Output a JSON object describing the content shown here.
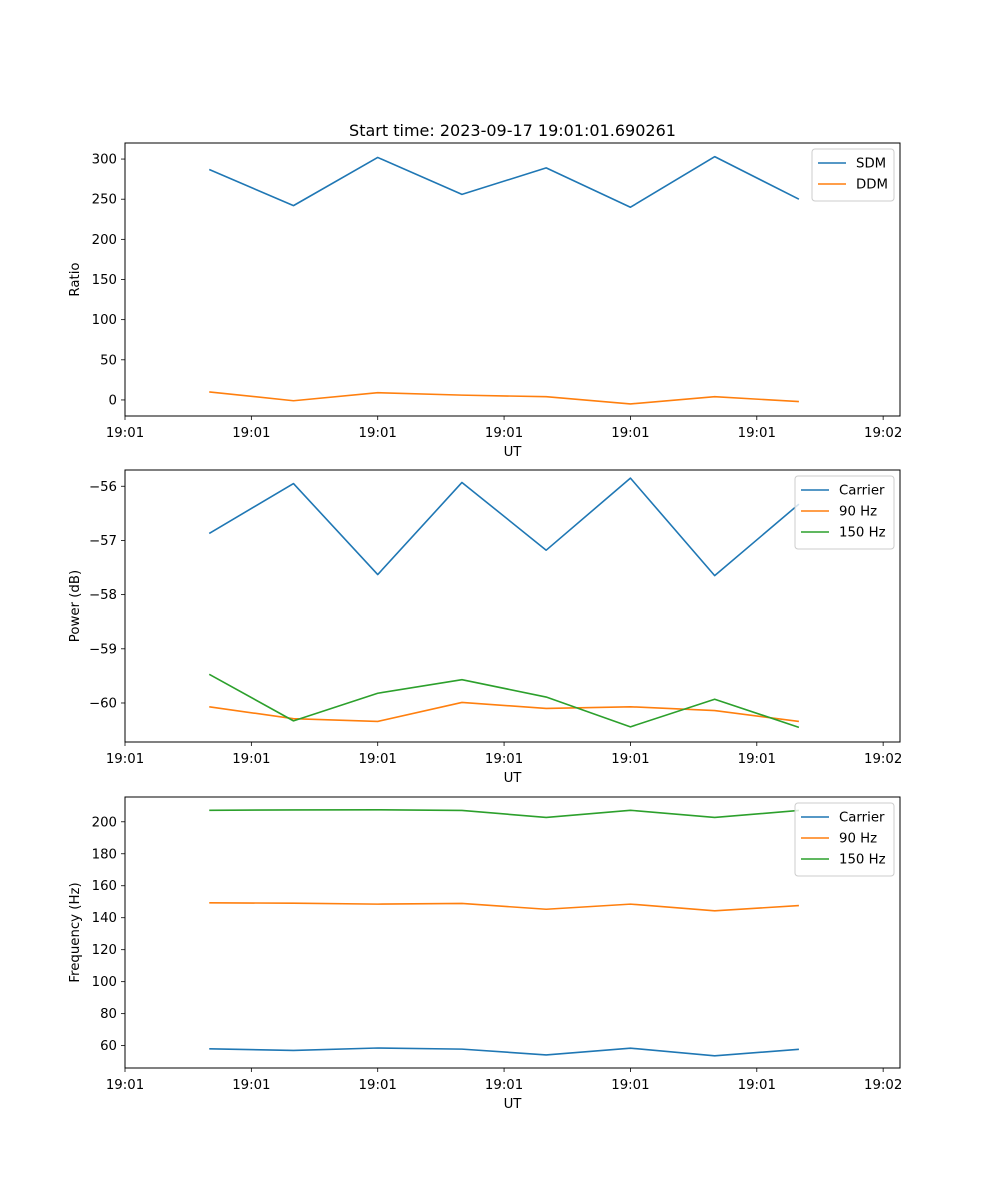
{
  "figure_title": "Start time: 2023-09-17 19:01:01.690261",
  "chart_data": [
    {
      "type": "line",
      "title": "Start time: 2023-09-17 19:01:01.690261",
      "xlabel": "UT",
      "ylabel": "Ratio",
      "x": [
        1,
        2,
        3,
        4,
        5,
        6,
        7,
        8
      ],
      "xlim": [
        0,
        9.2
      ],
      "xticks": [
        0.0,
        1.5,
        3.0,
        4.5,
        6.0,
        7.5,
        9.0
      ],
      "xtick_labels": [
        "19:01",
        "19:01",
        "19:01",
        "19:01",
        "19:01",
        "19:01",
        "19:02"
      ],
      "ylim": [
        -20,
        320
      ],
      "yticks": [
        0,
        50,
        100,
        150,
        200,
        250,
        300
      ],
      "legend_position": "top-right",
      "series": [
        {
          "name": "SDM",
          "color": "#1f77b4",
          "values": [
            287,
            242,
            302,
            256,
            289,
            240,
            303,
            250
          ]
        },
        {
          "name": "DDM",
          "color": "#ff7f0e",
          "values": [
            10,
            -1,
            9,
            6,
            4,
            -5,
            4,
            -2
          ]
        }
      ]
    },
    {
      "type": "line",
      "title": "",
      "xlabel": "UT",
      "ylabel": "Power (dB)",
      "x": [
        1,
        2,
        3,
        4,
        5,
        6,
        7,
        8
      ],
      "xlim": [
        0,
        9.2
      ],
      "xticks": [
        0.0,
        1.5,
        3.0,
        4.5,
        6.0,
        7.5,
        9.0
      ],
      "xtick_labels": [
        "19:01",
        "19:01",
        "19:01",
        "19:01",
        "19:01",
        "19:01",
        "19:02"
      ],
      "ylim": [
        -60.72,
        -55.7
      ],
      "yticks": [
        -60,
        -59,
        -58,
        -57,
        -56
      ],
      "legend_position": "top-right",
      "series": [
        {
          "name": "Carrier",
          "color": "#1f77b4",
          "values": [
            -56.87,
            -55.95,
            -57.63,
            -55.93,
            -57.18,
            -55.85,
            -57.65,
            -56.33
          ]
        },
        {
          "name": "90 Hz",
          "color": "#ff7f0e",
          "values": [
            -60.07,
            -60.29,
            -60.34,
            -59.99,
            -60.1,
            -60.07,
            -60.14,
            -60.34
          ]
        },
        {
          "name": "150 Hz",
          "color": "#2ca02c",
          "values": [
            -59.47,
            -60.33,
            -59.82,
            -59.57,
            -59.89,
            -60.44,
            -59.93,
            -60.45
          ]
        }
      ]
    },
    {
      "type": "line",
      "title": "",
      "xlabel": "UT",
      "ylabel": "Frequency (Hz)",
      "x": [
        1,
        2,
        3,
        4,
        5,
        6,
        7,
        8
      ],
      "xlim": [
        0,
        9.2
      ],
      "xticks": [
        0.0,
        1.5,
        3.0,
        4.5,
        6.0,
        7.5,
        9.0
      ],
      "xtick_labels": [
        "19:01",
        "19:01",
        "19:01",
        "19:01",
        "19:01",
        "19:01",
        "19:02"
      ],
      "ylim": [
        46.0,
        215.5
      ],
      "yticks": [
        60,
        80,
        100,
        120,
        140,
        160,
        180,
        200
      ],
      "legend_position": "top-right",
      "series": [
        {
          "name": "Carrier",
          "color": "#1f77b4",
          "values": [
            58,
            57,
            58.5,
            57.8,
            54.2,
            58.4,
            53.6,
            57.7
          ]
        },
        {
          "name": "90 Hz",
          "color": "#ff7f0e",
          "values": [
            149.3,
            149.1,
            148.5,
            148.9,
            145.3,
            148.5,
            144.3,
            147.6
          ]
        },
        {
          "name": "150 Hz",
          "color": "#2ca02c",
          "values": [
            207.2,
            207.4,
            207.5,
            207.1,
            202.7,
            207.2,
            202.7,
            207.1
          ]
        }
      ]
    }
  ]
}
